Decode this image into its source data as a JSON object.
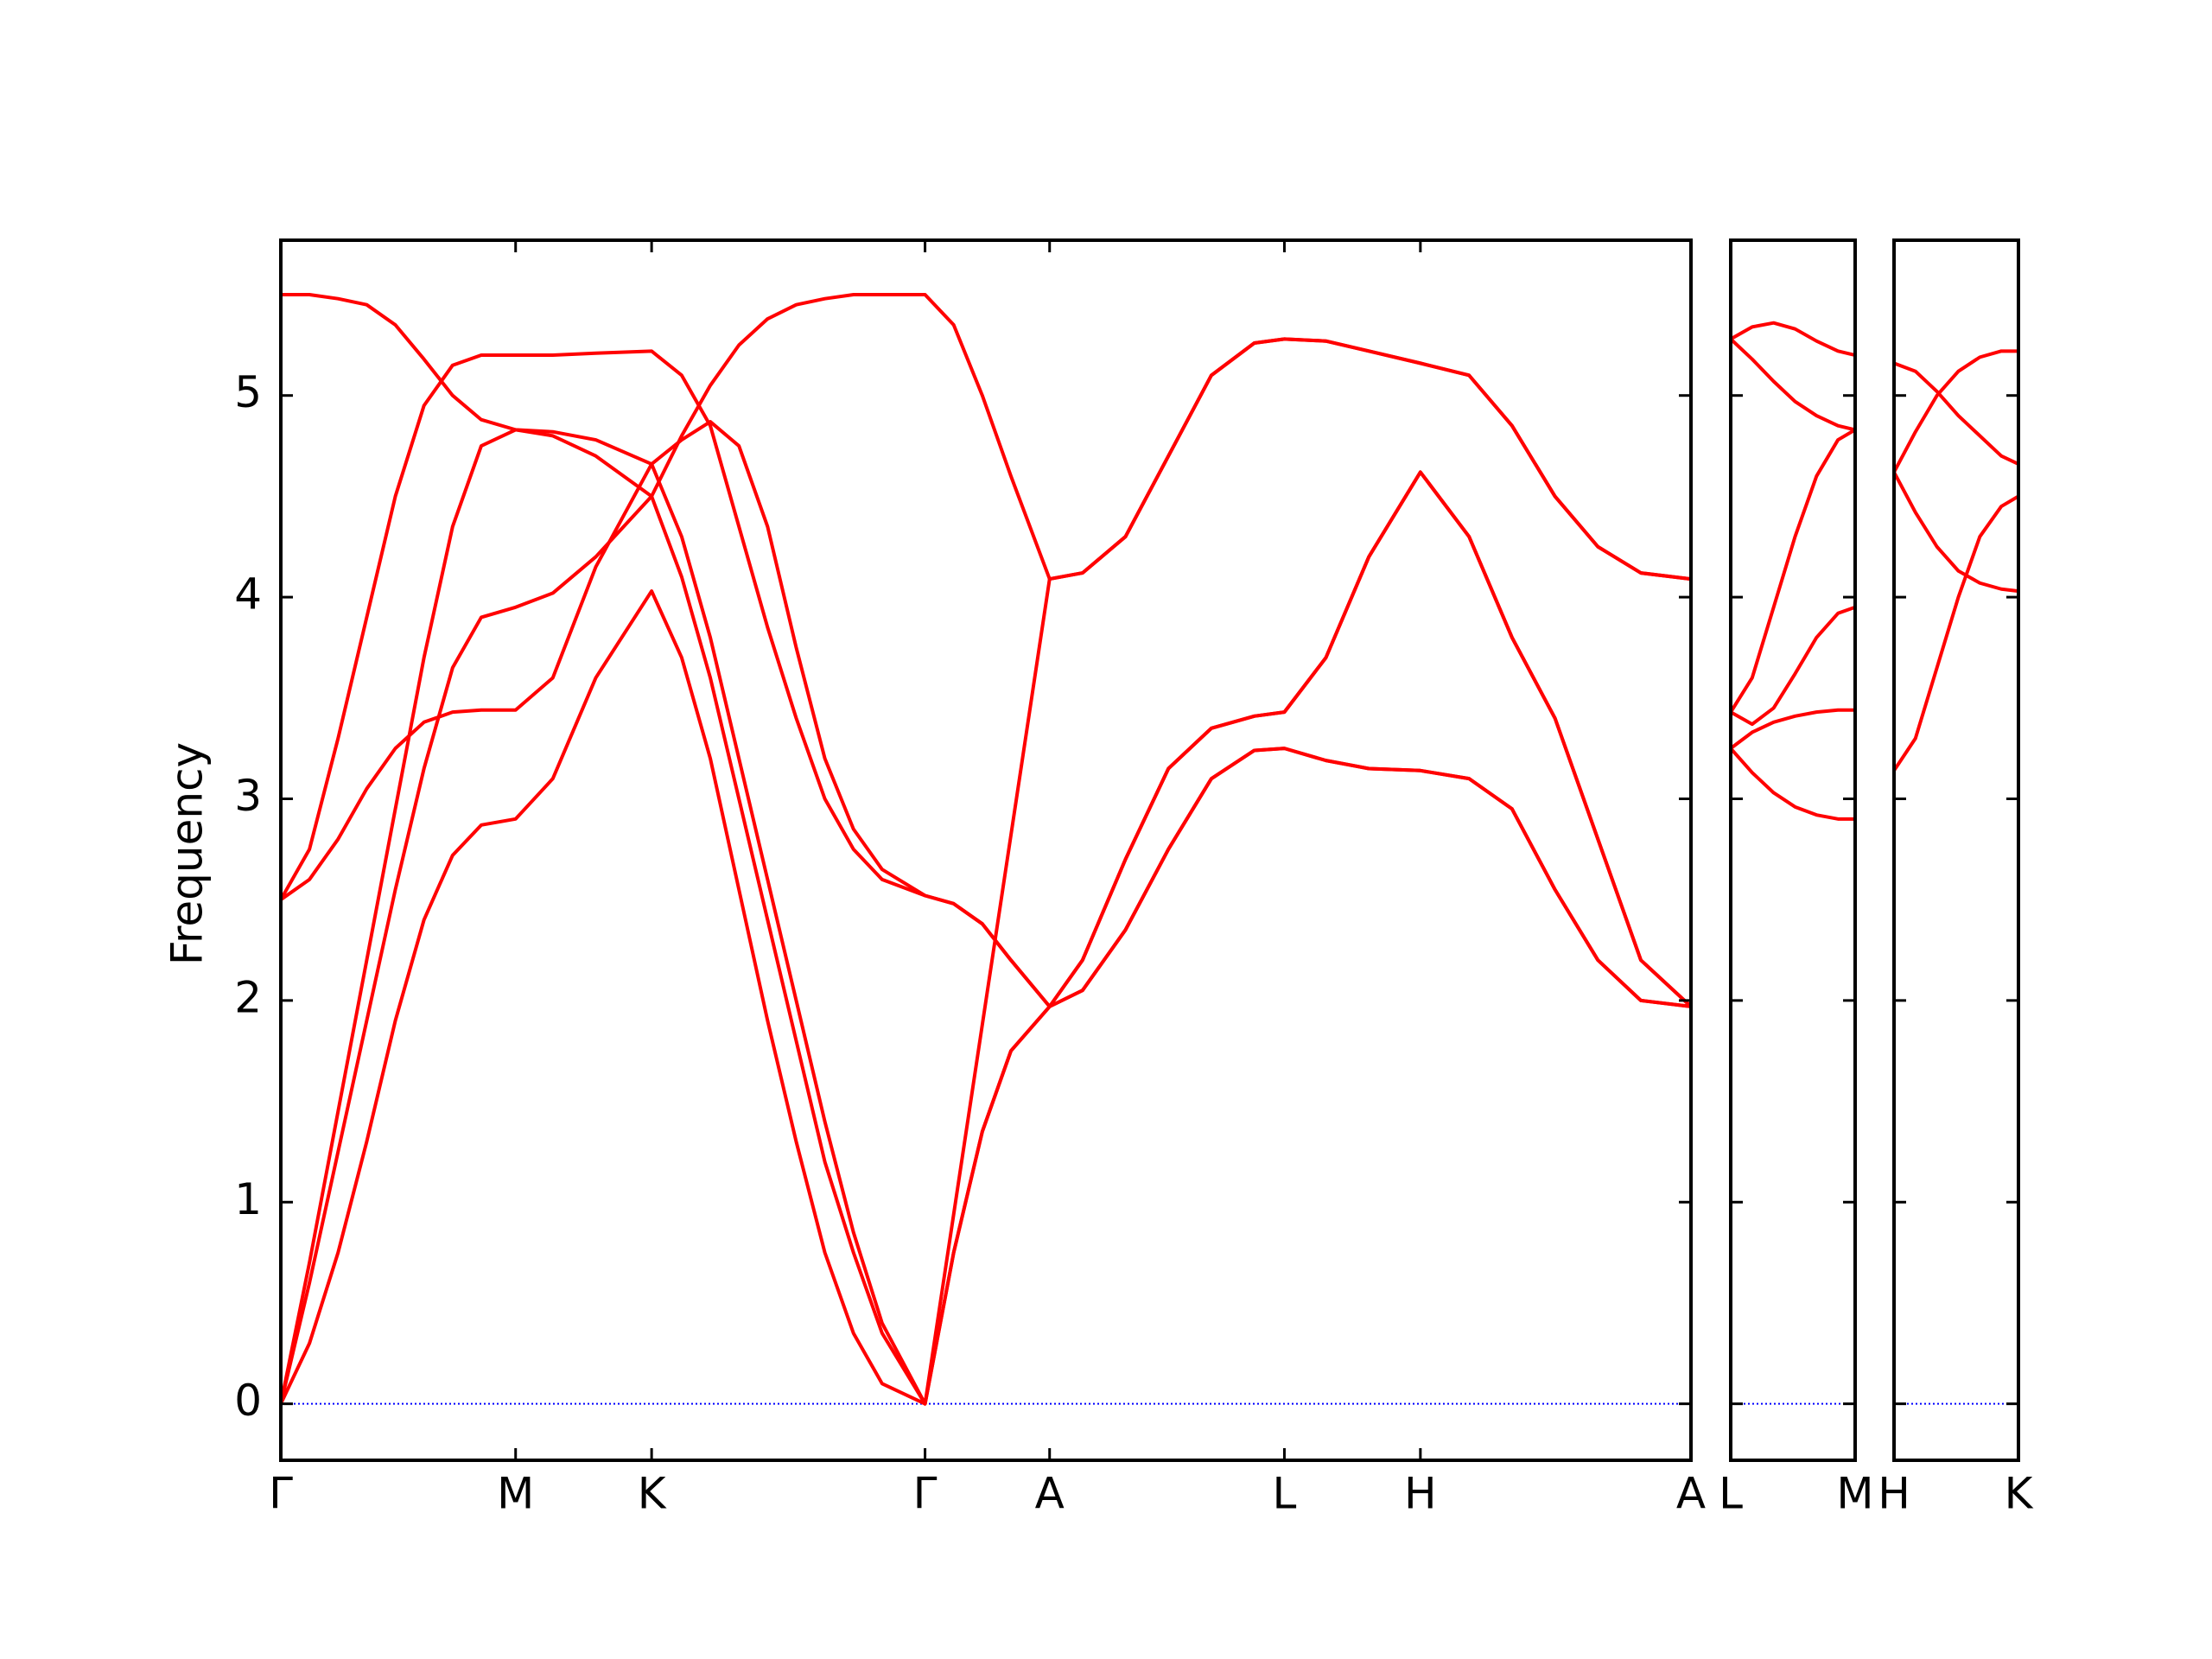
{
  "chart_data": [
    {
      "type": "line",
      "ylabel": "Frequency",
      "xlim": [
        0,
        9.85
      ],
      "ylim": [
        -0.28,
        5.77
      ],
      "yticks": [
        0,
        1,
        2,
        3,
        4,
        5
      ],
      "xticks": [
        {
          "value": 0,
          "label": "Γ"
        },
        {
          "value": 1.64,
          "label": "M"
        },
        {
          "value": 2.59,
          "label": "K"
        },
        {
          "value": 4.5,
          "label": "Γ"
        },
        {
          "value": 5.37,
          "label": "A"
        },
        {
          "value": 7.01,
          "label": "L"
        },
        {
          "value": 7.96,
          "label": "H"
        },
        {
          "value": 9.85,
          "label": "A"
        }
      ],
      "zero_line": {
        "value": 0,
        "color": "#0000ff"
      },
      "x": [
        0,
        0.2,
        0.4,
        0.6,
        0.8,
        1.0,
        1.2,
        1.4,
        1.64,
        1.9,
        2.2,
        2.59,
        2.8,
        3.0,
        3.2,
        3.4,
        3.6,
        3.8,
        4.0,
        4.2,
        4.5,
        4.7,
        4.9,
        5.1,
        5.37,
        5.6,
        5.9,
        6.2,
        6.5,
        6.8,
        7.01,
        7.3,
        7.6,
        7.96,
        8.3,
        8.6,
        8.9,
        9.2,
        9.5,
        9.85
      ],
      "series": [
        {
          "color": "#ff0000",
          "values": [
            5.5,
            5.5,
            5.48,
            5.45,
            5.35,
            5.18,
            5.0,
            4.88,
            4.83,
            4.82,
            4.78,
            4.66,
            4.3,
            3.8,
            3.2,
            2.6,
            2.0,
            1.4,
            0.85,
            0.4,
            0,
            0.94,
            1.88,
            2.82,
            4.09,
            4.12,
            4.3,
            4.7,
            5.1,
            5.26,
            5.28,
            5.27,
            5.22,
            5.16,
            5.1,
            4.85,
            4.5,
            4.25,
            4.12,
            4.09
          ]
        },
        {
          "color": "#ff0000",
          "values": [
            2.5,
            2.75,
            3.3,
            3.9,
            4.5,
            4.95,
            5.15,
            5.2,
            5.2,
            5.2,
            5.21,
            5.22,
            5.1,
            4.85,
            4.35,
            3.85,
            3.4,
            3.0,
            2.75,
            2.6,
            2.52,
            2.48,
            2.38,
            2.2,
            1.97,
            2.2,
            2.7,
            3.15,
            3.35,
            3.41,
            3.43,
            3.7,
            4.2,
            4.62,
            4.3,
            3.8,
            3.4,
            2.8,
            2.2,
            1.97
          ]
        },
        {
          "color": "#ff0000",
          "values": [
            2.5,
            2.6,
            2.8,
            3.05,
            3.25,
            3.38,
            3.43,
            3.44,
            3.44,
            3.6,
            4.15,
            4.66,
            4.78,
            4.87,
            4.75,
            4.35,
            3.75,
            3.2,
            2.85,
            2.65,
            2.52,
            2.48,
            2.38,
            2.2,
            1.97,
            2.2,
            2.7,
            3.15,
            3.35,
            3.41,
            3.43,
            3.7,
            4.2,
            4.62,
            4.3,
            3.8,
            3.4,
            2.8,
            2.2,
            1.97
          ]
        },
        {
          "color": "#ff0000",
          "values": [
            0,
            0.7,
            1.45,
            2.2,
            2.95,
            3.7,
            4.35,
            4.75,
            4.83,
            4.8,
            4.7,
            4.5,
            4.1,
            3.6,
            3.0,
            2.4,
            1.8,
            1.2,
            0.75,
            0.35,
            0,
            0.75,
            1.35,
            1.75,
            1.97,
            2.05,
            2.35,
            2.75,
            3.1,
            3.24,
            3.25,
            3.19,
            3.15,
            3.14,
            3.1,
            2.95,
            2.55,
            2.2,
            2.0,
            1.97
          ]
        },
        {
          "color": "#ff0000",
          "values": [
            0,
            0.6,
            1.25,
            1.9,
            2.55,
            3.15,
            3.65,
            3.9,
            3.95,
            4.02,
            4.2,
            4.5,
            4.8,
            5.05,
            5.25,
            5.38,
            5.45,
            5.48,
            5.5,
            5.5,
            5.5,
            5.35,
            5.0,
            4.6,
            4.09,
            4.12,
            4.3,
            4.7,
            5.1,
            5.26,
            5.28,
            5.27,
            5.22,
            5.16,
            5.1,
            4.85,
            4.5,
            4.25,
            4.12,
            4.09
          ]
        },
        {
          "color": "#ff0000",
          "values": [
            0,
            0.3,
            0.75,
            1.3,
            1.9,
            2.4,
            2.72,
            2.87,
            2.9,
            3.1,
            3.6,
            4.03,
            3.7,
            3.2,
            2.55,
            1.9,
            1.3,
            0.75,
            0.35,
            0.1,
            0,
            0.75,
            1.35,
            1.75,
            1.97,
            2.05,
            2.35,
            2.75,
            3.1,
            3.24,
            3.25,
            3.19,
            3.15,
            3.14,
            3.1,
            2.95,
            2.55,
            2.2,
            2.0,
            1.97
          ]
        }
      ]
    },
    {
      "type": "line",
      "xlim": [
        0,
        0.87
      ],
      "ylim": [
        -0.28,
        5.77
      ],
      "xticks": [
        {
          "value": 0,
          "label": "L"
        },
        {
          "value": 0.87,
          "label": "M"
        }
      ],
      "zero_line": {
        "value": 0,
        "color": "#0000ff"
      },
      "x": [
        0,
        0.15,
        0.3,
        0.45,
        0.6,
        0.75,
        0.87
      ],
      "series": [
        {
          "color": "#ff0000",
          "values": [
            5.28,
            5.34,
            5.36,
            5.33,
            5.27,
            5.22,
            5.2
          ]
        },
        {
          "color": "#ff0000",
          "values": [
            5.28,
            5.18,
            5.07,
            4.97,
            4.9,
            4.85,
            4.83
          ]
        },
        {
          "color": "#ff0000",
          "values": [
            3.43,
            3.6,
            3.95,
            4.3,
            4.6,
            4.78,
            4.83
          ]
        },
        {
          "color": "#ff0000",
          "values": [
            3.43,
            3.37,
            3.45,
            3.62,
            3.8,
            3.92,
            3.95
          ]
        },
        {
          "color": "#ff0000",
          "values": [
            3.25,
            3.33,
            3.38,
            3.41,
            3.43,
            3.44,
            3.44
          ]
        },
        {
          "color": "#ff0000",
          "values": [
            3.25,
            3.13,
            3.03,
            2.96,
            2.92,
            2.9,
            2.9
          ]
        }
      ]
    },
    {
      "type": "line",
      "xlim": [
        0,
        0.87
      ],
      "ylim": [
        -0.28,
        5.77
      ],
      "xticks": [
        {
          "value": 0,
          "label": "H"
        },
        {
          "value": 0.87,
          "label": "K"
        }
      ],
      "zero_line": {
        "value": 0,
        "color": "#0000ff"
      },
      "x": [
        0,
        0.15,
        0.3,
        0.45,
        0.6,
        0.75,
        0.87
      ],
      "series": [
        {
          "color": "#ff0000",
          "values": [
            5.16,
            5.12,
            5.02,
            4.9,
            4.8,
            4.7,
            4.66
          ]
        },
        {
          "color": "#ff0000",
          "values": [
            4.62,
            4.82,
            5.0,
            5.12,
            5.19,
            5.22,
            5.22
          ]
        },
        {
          "color": "#ff0000",
          "values": [
            4.62,
            4.42,
            4.25,
            4.13,
            4.07,
            4.04,
            4.03
          ]
        },
        {
          "color": "#ff0000",
          "values": [
            3.14,
            3.3,
            3.65,
            4.0,
            4.3,
            4.45,
            4.5
          ]
        }
      ]
    }
  ]
}
